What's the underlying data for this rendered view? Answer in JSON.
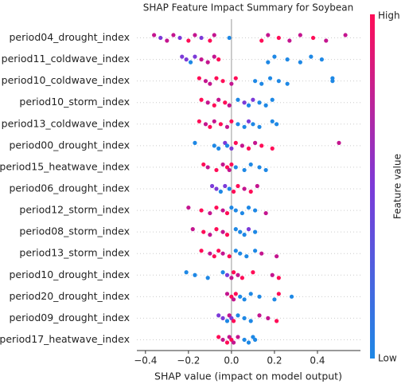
{
  "chart_data": {
    "type": "beeswarm",
    "title": "SHAP Feature Impact Summary for Soybean",
    "xlabel": "SHAP value (impact on model output)",
    "xlim": [
      -0.44,
      0.6
    ],
    "xticks": [
      {
        "value": -0.4,
        "label": "−0.4"
      },
      {
        "value": -0.2,
        "label": "−0.2"
      },
      {
        "value": 0,
        "label": "0.0"
      },
      0.2,
      0.4
    ],
    "categories": [
      "period04_drought_index",
      "period11_coldwave_index",
      "period10_coldwave_index",
      "period10_storm_index",
      "period13_coldwave_index",
      "period00_drought_index",
      "period15_heatwave_index",
      "period06_drought_index",
      "period12_storm_index",
      "period08_storm_index",
      "period13_storm_index",
      "period10_drought_index",
      "period20_drought_index",
      "period09_drought_index",
      "period17_heatwave_index"
    ],
    "points": [
      {
        "x": [
          -0.36,
          -0.33,
          -0.3,
          -0.27,
          -0.24,
          -0.2,
          -0.17,
          -0.14,
          -0.1,
          -0.08,
          -0.01,
          0.14,
          0.17,
          0.22,
          0.27,
          0.32,
          0.38,
          0.44,
          0.53
        ],
        "colors": [
          "#c4158f",
          "#7c3ad8",
          "#c4158f",
          "#c4158f",
          "#7c3ad8",
          "#ff0d57",
          "#c4158f",
          "#7c3ad8",
          "#ff0d57",
          "#c4158f",
          "#1e88e5",
          "#ff0d57",
          "#c4158f",
          "#ff0d57",
          "#c4158f",
          "#c4158f",
          "#ff0d57",
          "#c4158f",
          "#c4158f"
        ]
      },
      {
        "x": [
          -0.23,
          -0.21,
          -0.19,
          -0.17,
          -0.14,
          -0.11,
          -0.08,
          -0.06,
          0.17,
          0.2,
          0.26,
          0.32,
          0.37,
          0.42
        ],
        "colors": [
          "#7c3ad8",
          "#7c3ad8",
          "#1e88e5",
          "#7c3ad8",
          "#c4158f",
          "#c4158f",
          "#c4158f",
          "#ff0d57",
          "#1e88e5",
          "#1e88e5",
          "#1e88e5",
          "#1e88e5",
          "#1e88e5",
          "#1e88e5"
        ]
      },
      {
        "x": [
          -0.15,
          -0.12,
          -0.1,
          -0.07,
          -0.04,
          0.0,
          0.02,
          0.11,
          0.14,
          0.18,
          0.22,
          0.26,
          0.47,
          0.47
        ],
        "colors": [
          "#ff0d57",
          "#c4158f",
          "#c4158f",
          "#ff0d57",
          "#ff0d57",
          "#c4158f",
          "#ff0d57",
          "#1e88e5",
          "#1e88e5",
          "#1e88e5",
          "#1e88e5",
          "#1e88e5",
          "#1e88e5",
          "#1e88e5"
        ]
      },
      {
        "x": [
          -0.14,
          -0.11,
          -0.08,
          -0.06,
          -0.03,
          -0.01,
          0.03,
          0.06,
          0.08,
          0.1,
          0.13,
          0.16,
          0.19
        ],
        "colors": [
          "#ff0d57",
          "#c4158f",
          "#ff0d57",
          "#c4158f",
          "#ff0d57",
          "#c4158f",
          "#1e88e5",
          "#7c3ad8",
          "#1e88e5",
          "#7c3ad8",
          "#1e88e5",
          "#1e88e5",
          "#1e88e5"
        ]
      },
      {
        "x": [
          -0.15,
          -0.12,
          -0.1,
          -0.08,
          -0.05,
          -0.02,
          0.0,
          0.03,
          0.06,
          0.08,
          0.1,
          0.13,
          0.19,
          0.21
        ],
        "colors": [
          "#ff0d57",
          "#c4158f",
          "#ff0d57",
          "#c4158f",
          "#ff0d57",
          "#c4158f",
          "#ff0d57",
          "#1e88e5",
          "#1e88e5",
          "#7c3ad8",
          "#1e88e5",
          "#1e88e5",
          "#1e88e5",
          "#1e88e5"
        ]
      },
      {
        "x": [
          -0.17,
          -0.08,
          -0.06,
          -0.03,
          -0.02,
          0.0,
          0.02,
          0.05,
          0.08,
          0.11,
          0.14,
          0.19,
          0.5
        ],
        "colors": [
          "#1e88e5",
          "#1e88e5",
          "#1e88e5",
          "#7c3ad8",
          "#1e88e5",
          "#7c3ad8",
          "#ff0d57",
          "#c4158f",
          "#ff0d57",
          "#c4158f",
          "#ff0d57",
          "#ff0d57",
          "#c4158f"
        ]
      },
      {
        "x": [
          -0.13,
          -0.11,
          -0.07,
          -0.04,
          -0.02,
          -0.01,
          0.0,
          0.02,
          0.06,
          0.09,
          0.13,
          0.16
        ],
        "colors": [
          "#ff0d57",
          "#c4158f",
          "#ff0d57",
          "#c4158f",
          "#ff0d57",
          "#c4158f",
          "#ff0d57",
          "#1e88e5",
          "#1e88e5",
          "#1e88e5",
          "#1e88e5",
          "#1e88e5"
        ]
      },
      {
        "x": [
          -0.09,
          -0.07,
          -0.05,
          -0.03,
          -0.01,
          0.01,
          0.03,
          0.06,
          0.09,
          0.12
        ],
        "colors": [
          "#7c3ad8",
          "#7c3ad8",
          "#1e88e5",
          "#7c3ad8",
          "#1e88e5",
          "#ff0d57",
          "#ff0d57",
          "#c4158f",
          "#ff0d57",
          "#c4158f"
        ]
      },
      {
        "x": [
          -0.2,
          -0.14,
          -0.1,
          -0.07,
          -0.04,
          -0.02,
          0.0,
          0.02,
          0.05,
          0.08,
          0.11,
          0.16
        ],
        "colors": [
          "#c4158f",
          "#ff0d57",
          "#c4158f",
          "#ff0d57",
          "#c4158f",
          "#ff0d57",
          "#1e88e5",
          "#1e88e5",
          "#1e88e5",
          "#1e88e5",
          "#1e88e5",
          "#c4158f"
        ]
      },
      {
        "x": [
          -0.18,
          -0.13,
          -0.1,
          -0.07,
          -0.04,
          -0.02,
          0.02,
          0.04,
          0.06,
          0.08,
          0.11
        ],
        "colors": [
          "#c4158f",
          "#ff0d57",
          "#c4158f",
          "#ff0d57",
          "#c4158f",
          "#ff0d57",
          "#1e88e5",
          "#1e88e5",
          "#1e88e5",
          "#7c3ad8",
          "#1e88e5"
        ]
      },
      {
        "x": [
          -0.14,
          -0.1,
          -0.08,
          -0.06,
          -0.04,
          -0.01,
          0.02,
          0.04,
          0.07,
          0.11,
          0.14,
          0.21
        ],
        "colors": [
          "#ff0d57",
          "#c4158f",
          "#ff0d57",
          "#ff0d57",
          "#c4158f",
          "#ff0d57",
          "#1e88e5",
          "#1e88e5",
          "#1e88e5",
          "#1e88e5",
          "#c4158f",
          "#c4158f"
        ]
      },
      {
        "x": [
          -0.21,
          -0.17,
          -0.11,
          -0.04,
          -0.02,
          0.0,
          0.01,
          0.03,
          0.05,
          0.1,
          0.19,
          0.22
        ],
        "colors": [
          "#1e88e5",
          "#1e88e5",
          "#1e88e5",
          "#1e88e5",
          "#7c3ad8",
          "#c4158f",
          "#ff0d57",
          "#c4158f",
          "#ff0d57",
          "#ff0d57",
          "#c4158f",
          "#ff0d57"
        ]
      },
      {
        "x": [
          -0.02,
          0.0,
          0.01,
          0.02,
          0.04,
          0.06,
          0.09,
          0.13,
          0.2,
          0.22,
          0.28
        ],
        "colors": [
          "#c4158f",
          "#ff0d57",
          "#c4158f",
          "#ff0d57",
          "#1e88e5",
          "#1e88e5",
          "#1e88e5",
          "#1e88e5",
          "#1e88e5",
          "#ff0d57",
          "#1e88e5"
        ]
      },
      {
        "x": [
          -0.06,
          -0.04,
          -0.02,
          -0.01,
          0.0,
          0.01,
          0.03,
          0.06,
          0.09,
          0.13,
          0.17,
          0.21
        ],
        "colors": [
          "#7c3ad8",
          "#7c3ad8",
          "#1e88e5",
          "#c4158f",
          "#7c3ad8",
          "#ff0d57",
          "#1e88e5",
          "#1e88e5",
          "#1e88e5",
          "#c4158f",
          "#c4158f",
          "#ff0d57"
        ]
      },
      {
        "x": [
          -0.06,
          -0.04,
          -0.02,
          -0.01,
          0.0,
          0.01,
          0.03,
          0.06,
          0.08,
          0.1,
          0.11
        ],
        "colors": [
          "#ff0d57",
          "#c4158f",
          "#ff0d57",
          "#c4158f",
          "#ff0d57",
          "#c4158f",
          "#c4158f",
          "#1e88e5",
          "#1e88e5",
          "#1e88e5",
          "#1e88e5"
        ]
      }
    ],
    "colorbar": {
      "high": "High",
      "low": "Low",
      "label": "Feature value",
      "colors": [
        "#1e88e5",
        "#7c3ad8",
        "#ff0d57"
      ]
    }
  }
}
